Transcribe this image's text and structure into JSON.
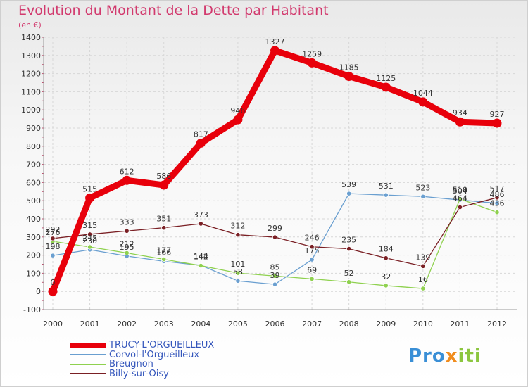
{
  "title": "Evolution du Montant de la Dette par Habitant",
  "subtitle": "(en €)",
  "logo_text": "Proxiti",
  "chart_data": {
    "type": "line",
    "title": "Evolution du Montant de la Dette par Habitant",
    "ylabel": "(en €)",
    "x": [
      "2000",
      "2001",
      "2002",
      "2003",
      "2004",
      "2005",
      "2006",
      "2007",
      "2008",
      "2009",
      "2010",
      "2011",
      "2012"
    ],
    "ylim": [
      -100,
      1400
    ],
    "yticks": [
      -100,
      0,
      100,
      200,
      300,
      400,
      500,
      600,
      700,
      800,
      900,
      1000,
      1100,
      1200,
      1300,
      1400
    ],
    "grid": true,
    "legend_position": "bottom-left",
    "series": [
      {
        "name": "TRUCY-L'ORGUEILLEUX",
        "color": "#e8000b",
        "values": [
          0,
          515,
          612,
          586,
          817,
          946,
          1327,
          1259,
          1185,
          1125,
          1044,
          934,
          927
        ]
      },
      {
        "name": "Corvol-l'Orgueilleux",
        "color": "#6a9fd0",
        "values": [
          198,
          230,
          195,
          166,
          144,
          58,
          39,
          175,
          539,
          531,
          523,
          504,
          486
        ]
      },
      {
        "name": "Breugnon",
        "color": "#8fd14f",
        "values": [
          276,
          245,
          212,
          177,
          142,
          101,
          85,
          69,
          52,
          32,
          16,
          510,
          436
        ]
      },
      {
        "name": "Billy-sur-Oisy",
        "color": "#7a1f24",
        "values": [
          292,
          315,
          333,
          351,
          373,
          312,
          299,
          246,
          235,
          184,
          139,
          464,
          517
        ]
      }
    ],
    "data_labels": [
      [
        "0",
        "515",
        "612",
        "586",
        "817",
        "946",
        "1327",
        "1259",
        "1185",
        "1125",
        "1044",
        "934",
        "927"
      ],
      [
        "198",
        "230",
        "195",
        "166",
        "144",
        "58",
        "39",
        "175",
        "539",
        "531",
        "523",
        "504",
        "486"
      ],
      [
        "276",
        "245",
        "212",
        "177",
        "142",
        "101",
        "85",
        "69",
        "52",
        "32",
        "16",
        "510",
        "436"
      ],
      [
        "292",
        "315",
        "333",
        "351",
        "373",
        "312",
        "299",
        "246",
        "235",
        "184",
        "139",
        "464",
        "517"
      ]
    ]
  }
}
